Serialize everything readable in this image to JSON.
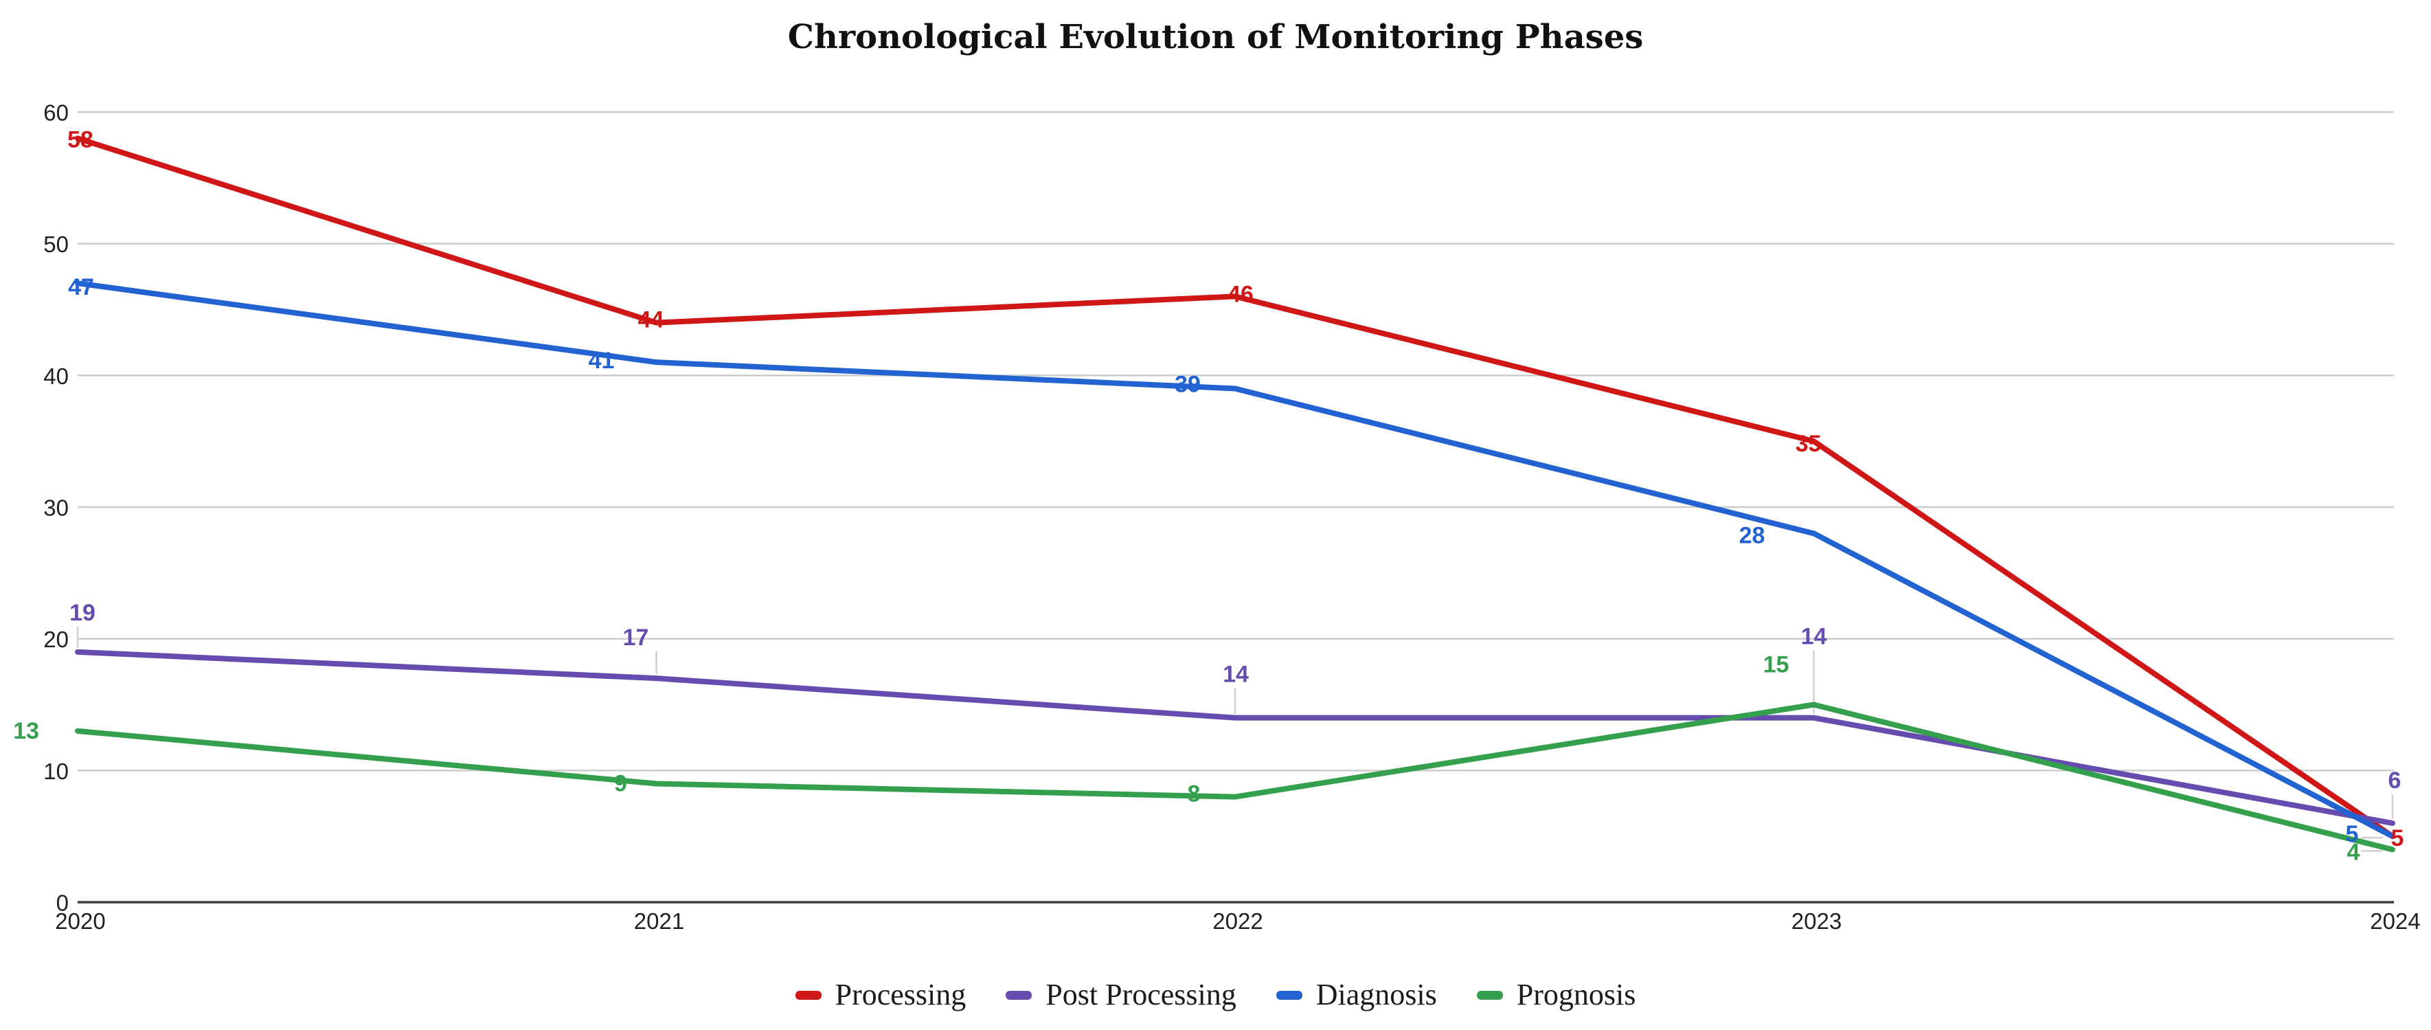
{
  "title": "Chronological Evolution of Monitoring Phases",
  "chart_data": {
    "type": "line",
    "x": [
      "2020",
      "2021",
      "2022",
      "2023",
      "2024"
    ],
    "series": [
      {
        "name": "Processing",
        "color": "#CF1717",
        "values": [
          58,
          44,
          46,
          35,
          5
        ],
        "label_offsets": [
          [
            4,
            2,
            0
          ],
          [
            -8,
            -4,
            0
          ],
          [
            8,
            -3,
            0
          ],
          [
            -8,
            4,
            0
          ],
          [
            7,
            3,
            0
          ]
        ]
      },
      {
        "name": "Post Processing",
        "color": "#664CAE",
        "values": [
          19,
          17,
          14,
          14,
          6
        ],
        "label_offsets": [
          [
            7,
            -57,
            1
          ],
          [
            -30,
            -59,
            1
          ],
          [
            1,
            -63,
            1
          ],
          [
            0,
            -118,
            1
          ],
          [
            3,
            -62,
            1
          ]
        ]
      },
      {
        "name": "Diagnosis",
        "color": "#2263D1",
        "values": [
          47,
          41,
          39,
          28,
          5
        ],
        "label_offsets": [
          [
            5,
            6,
            0
          ],
          [
            -80,
            -2,
            0
          ],
          [
            -69,
            -6,
            0
          ],
          [
            -90,
            3,
            0
          ],
          [
            -59,
            -3,
            2
          ]
        ]
      },
      {
        "name": "Prognosis",
        "color": "#34A04E",
        "values": [
          13,
          9,
          8,
          15,
          4
        ],
        "label_offsets": [
          [
            -75,
            0,
            0
          ],
          [
            -52,
            0,
            0
          ],
          [
            -60,
            -4,
            0
          ],
          [
            -55,
            -58,
            0
          ],
          [
            -57,
            4,
            2
          ]
        ]
      }
    ],
    "title": "Chronological Evolution of Monitoring Phases",
    "xlabel": "",
    "ylabel": "",
    "ylim": [
      0,
      60
    ],
    "yticks": [
      0,
      10,
      20,
      30,
      40,
      50,
      60
    ],
    "grid": "horizontal-only",
    "legend_position": "bottom",
    "annotations": "point values shown as bold colored labels"
  },
  "colors": {
    "background": "#FFFFFF",
    "grid": "#CCCCCC",
    "axis": "#3C3C3C",
    "stem": "#CFCFCF",
    "tick_text": "#212121",
    "title_text": "#111111",
    "legend_text": "#1B1B1B"
  }
}
